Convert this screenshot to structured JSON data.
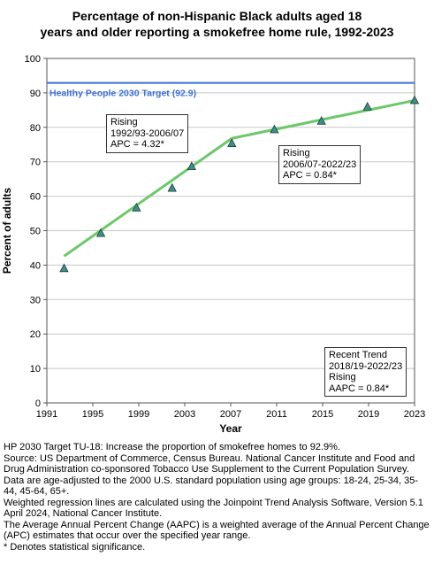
{
  "chart_data": {
    "type": "line",
    "title_lines": [
      "Percentage of non-Hispanic Black adults aged 18",
      "years and older reporting a smokefree home rule, 1992-2023"
    ],
    "xlabel": "Year",
    "ylabel": "Percent of adults",
    "xlim": [
      1991,
      2023
    ],
    "ylim": [
      0,
      100
    ],
    "x_ticks": [
      1991,
      1995,
      1999,
      2003,
      2007,
      2011,
      2015,
      2019,
      2023
    ],
    "y_ticks": [
      0,
      10,
      20,
      30,
      40,
      50,
      60,
      70,
      80,
      90,
      100
    ],
    "grid": "horizontal",
    "target_line": {
      "label": "Healthy People 2030 Target (92.9)",
      "value": 92.9,
      "color": "#3b6fd6"
    },
    "observed": {
      "marker": "triangle",
      "color": "#3f8f86",
      "x": [
        1992.5,
        1995.7,
        1998.8,
        2001.9,
        2003.6,
        2007.1,
        2010.8,
        2014.9,
        2018.9,
        2023
      ],
      "y": [
        39,
        49.2,
        56.6,
        62.3,
        68.6,
        75.3,
        79.3,
        81.8,
        85.9,
        87.8
      ]
    },
    "trend": {
      "color": "#6cc86a",
      "x": [
        1992.5,
        2007.1,
        2023
      ],
      "y": [
        42.6,
        76.8,
        87.8
      ]
    },
    "annotations": [
      {
        "lines": [
          "Rising",
          "1992/93-2006/07",
          "APC =  4.32*"
        ]
      },
      {
        "lines": [
          "Rising",
          "2006/07-2022/23",
          "APC =  0.84*"
        ]
      },
      {
        "lines": [
          "Recent Trend",
          "2018/19-2022/23",
          "Rising",
          "AAPC =  0.84*"
        ]
      }
    ]
  },
  "footnotes": [
    "HP 2030 Target TU-18: Increase the proportion of smokefree homes to 92.9%.",
    "Source: US Department of Commerce, Census Bureau. National Cancer Institute and Food and Drug Administration co-sponsored Tobacco Use Supplement to the Current Population Survey.",
    "Data are age-adjusted to the 2000 U.S. standard population using age groups: 18-24, 25-34, 35-44, 45-64, 65+.",
    "Weighted regression lines are calculated using the Joinpoint Trend Analysis Software, Version 5.1 April 2024, National Cancer Institute.",
    "The Average Annual Percent Change (AAPC) is a weighted average of the Annual Percent Change (APC) estimates that occur over the specified year range.",
    "* Denotes statistical significance."
  ]
}
